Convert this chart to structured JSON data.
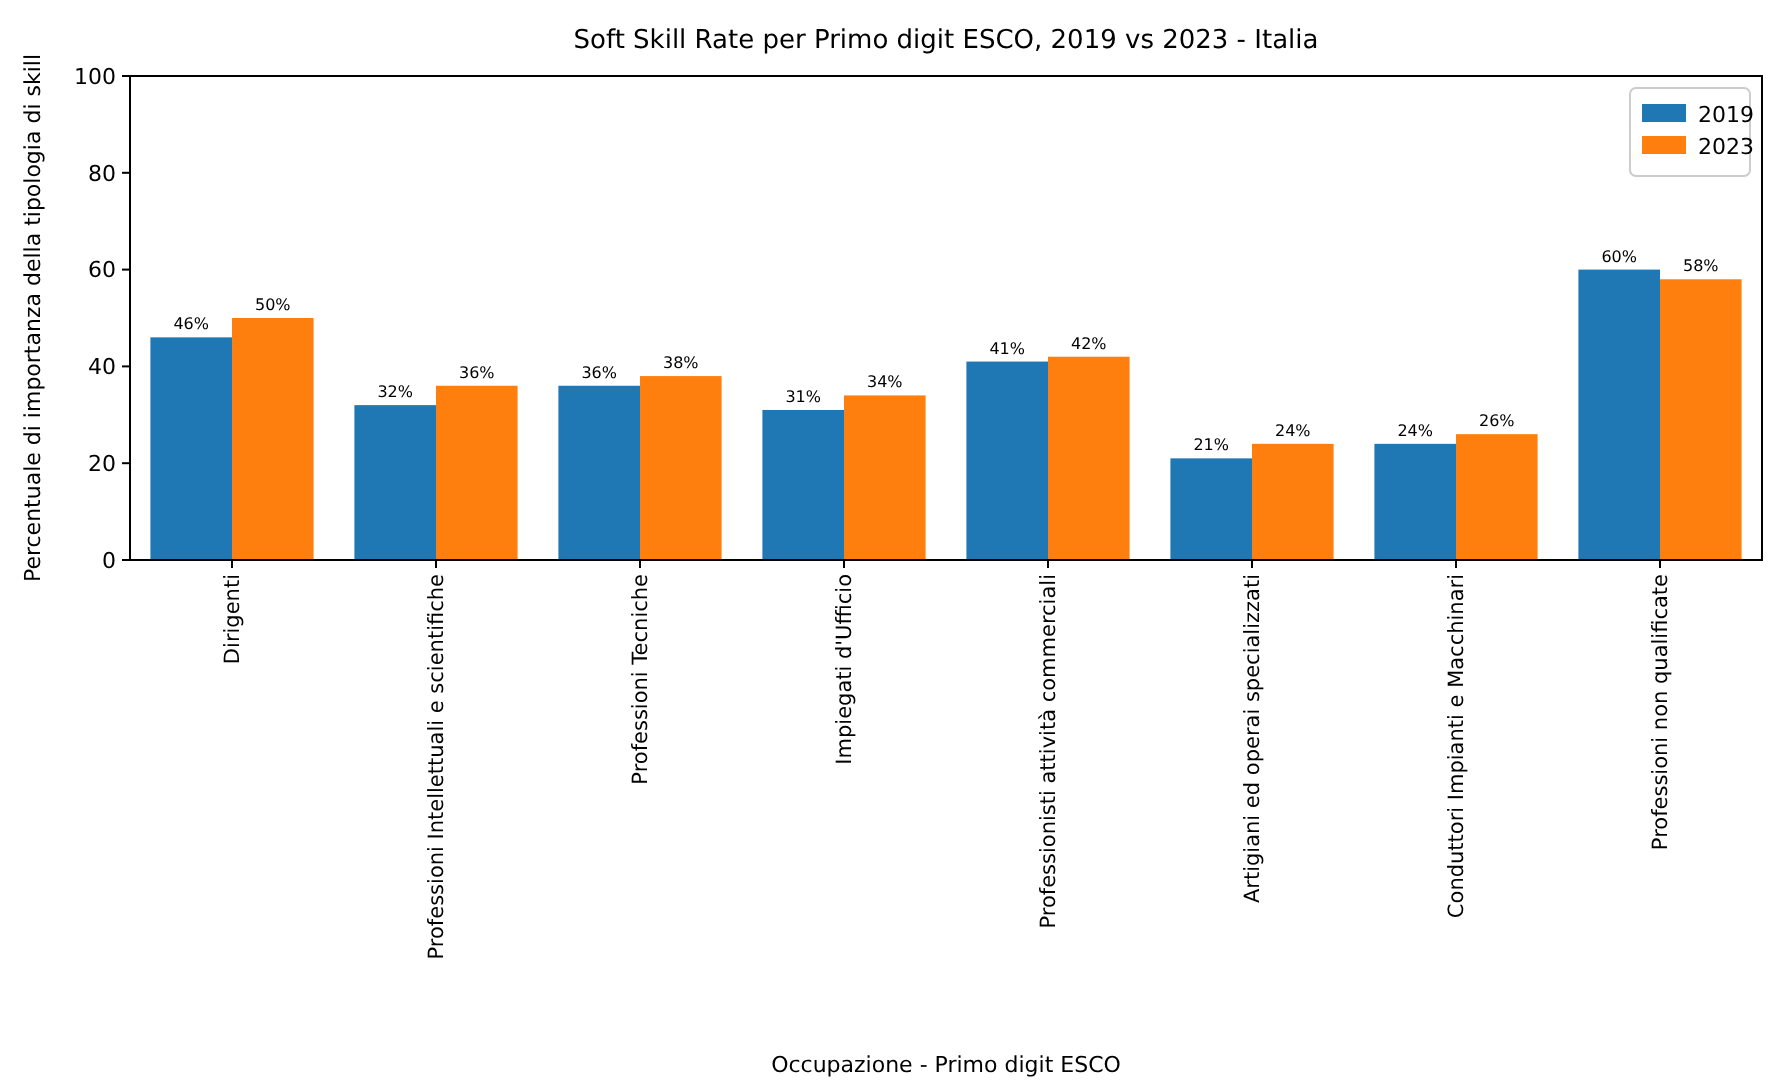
{
  "chart_data": {
    "type": "bar",
    "title": "Soft Skill Rate per Primo digit ESCO, 2019 vs 2023 - Italia",
    "xlabel": "Occupazione - Primo digit ESCO",
    "ylabel": "Percentuale di importanza della tipologia di skill",
    "categories": [
      "Dirigenti",
      "Professioni Intellettuali e scientifiche",
      "Professioni Tecniche",
      "Impiegati d'Ufficio",
      "Professionisti attività commerciali",
      "Artigiani ed operai specializzati",
      "Conduttori Impianti e Macchinari",
      "Professioni non qualificate"
    ],
    "series": [
      {
        "name": "2019",
        "color": "#1f77b4",
        "values": [
          46,
          32,
          36,
          31,
          41,
          21,
          24,
          60
        ],
        "value_labels": [
          "46%",
          "32%",
          "36%",
          "31%",
          "41%",
          "21%",
          "24%",
          "60%"
        ]
      },
      {
        "name": "2023",
        "color": "#ff7f0e",
        "values": [
          50,
          36,
          38,
          34,
          42,
          24,
          26,
          58
        ],
        "value_labels": [
          "50%",
          "36%",
          "38%",
          "34%",
          "42%",
          "24%",
          "26%",
          "58%"
        ]
      }
    ],
    "ylim": [
      0,
      100
    ],
    "yticks": [
      0,
      20,
      40,
      60,
      80,
      100
    ],
    "grid": false,
    "legend": "top right"
  }
}
